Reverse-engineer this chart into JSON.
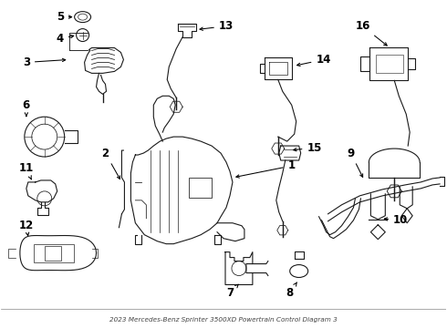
{
  "title": "2023 Mercedes-Benz Sprinter 3500XD Powertrain Control Diagram 3",
  "bg_color": "#ffffff",
  "line_color": "#1a1a1a",
  "label_color": "#000000",
  "fig_w": 4.9,
  "fig_h": 3.6,
  "dpi": 100
}
